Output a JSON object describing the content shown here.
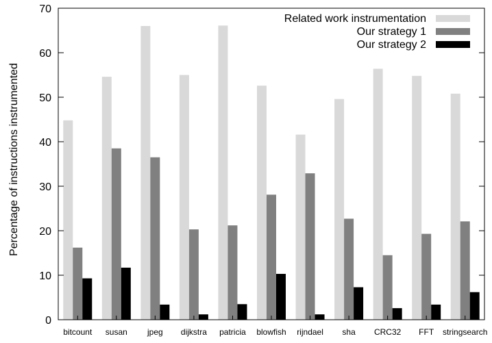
{
  "chart_data": {
    "type": "bar",
    "title": "",
    "xlabel": "",
    "ylabel": "Percentage of instructions instrumented",
    "ylim": [
      0,
      70
    ],
    "yticks": [
      0,
      10,
      20,
      30,
      40,
      50,
      60,
      70
    ],
    "grid": false,
    "legend_position": "top-right",
    "categories": [
      "bitcount",
      "susan",
      "jpeg",
      "dijkstra",
      "patricia",
      "blowfish",
      "rijndael",
      "sha",
      "CRC32",
      "FFT",
      "stringsearch"
    ],
    "series": [
      {
        "name": "Related work instrumentation",
        "color": "#d9d9d9",
        "values": [
          44.8,
          54.6,
          66.0,
          55.0,
          66.1,
          52.6,
          41.6,
          49.6,
          56.4,
          54.8,
          50.8
        ]
      },
      {
        "name": "Our strategy 1",
        "color": "#808080",
        "values": [
          16.2,
          38.5,
          36.5,
          20.3,
          21.2,
          28.1,
          32.9,
          22.7,
          14.5,
          19.3,
          22.1
        ]
      },
      {
        "name": "Our strategy 2",
        "color": "#000000",
        "values": [
          9.3,
          11.7,
          3.4,
          1.2,
          3.5,
          10.3,
          1.2,
          7.3,
          2.6,
          3.4,
          6.2
        ]
      }
    ]
  }
}
